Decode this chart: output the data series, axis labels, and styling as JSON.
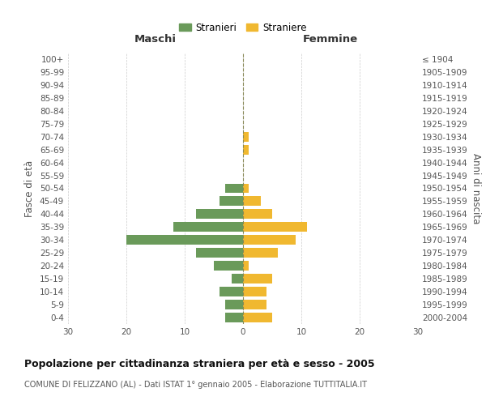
{
  "age_groups": [
    "0-4",
    "5-9",
    "10-14",
    "15-19",
    "20-24",
    "25-29",
    "30-34",
    "35-39",
    "40-44",
    "45-49",
    "50-54",
    "55-59",
    "60-64",
    "65-69",
    "70-74",
    "75-79",
    "80-84",
    "85-89",
    "90-94",
    "95-99",
    "100+"
  ],
  "birth_years": [
    "2000-2004",
    "1995-1999",
    "1990-1994",
    "1985-1989",
    "1980-1984",
    "1975-1979",
    "1970-1974",
    "1965-1969",
    "1960-1964",
    "1955-1959",
    "1950-1954",
    "1945-1949",
    "1940-1944",
    "1935-1939",
    "1930-1934",
    "1925-1929",
    "1920-1924",
    "1915-1919",
    "1910-1914",
    "1905-1909",
    "≤ 1904"
  ],
  "maschi": [
    3,
    3,
    4,
    2,
    5,
    8,
    20,
    12,
    8,
    4,
    3,
    0,
    0,
    0,
    0,
    0,
    0,
    0,
    0,
    0,
    0
  ],
  "femmine": [
    5,
    4,
    4,
    5,
    1,
    6,
    9,
    11,
    5,
    3,
    1,
    0,
    0,
    1,
    1,
    0,
    0,
    0,
    0,
    0,
    0
  ],
  "maschi_color": "#6a9a5a",
  "femmine_color": "#f0b830",
  "title": "Popolazione per cittadinanza straniera per età e sesso - 2005",
  "subtitle": "COMUNE DI FELIZZANO (AL) - Dati ISTAT 1° gennaio 2005 - Elaborazione TUTTITALIA.IT",
  "xlabel_left": "Maschi",
  "xlabel_right": "Femmine",
  "ylabel_left": "Fasce di età",
  "ylabel_right": "Anni di nascita",
  "legend_maschi": "Stranieri",
  "legend_femmine": "Straniere",
  "xlim": 30,
  "background_color": "#ffffff",
  "grid_color": "#cccccc",
  "tick_color": "#888888",
  "label_color": "#555555"
}
